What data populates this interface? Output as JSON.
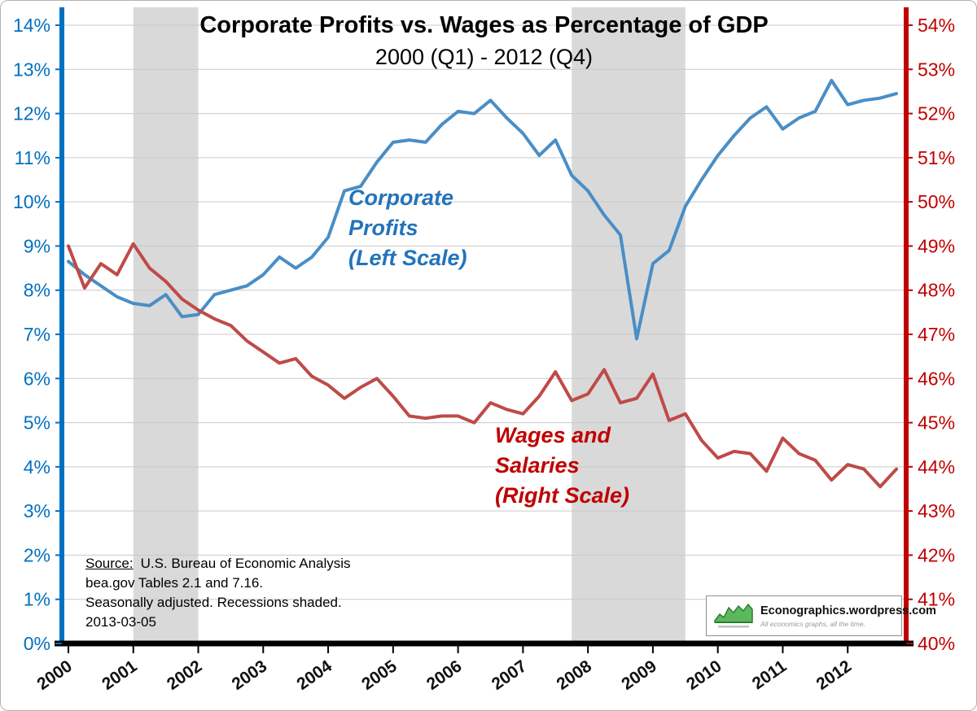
{
  "chart_data": {
    "type": "line",
    "title": "Corporate Profits vs. Wages as Percentage of GDP",
    "subtitle": "2000 (Q1) - 2012 (Q4)",
    "x_start": 2000.0,
    "x_step": 0.25,
    "x_axis": {
      "min": 1999.9,
      "max": 2012.9,
      "labels": [
        "2000",
        "2001",
        "2002",
        "2003",
        "2004",
        "2005",
        "2006",
        "2007",
        "2008",
        "2009",
        "2010",
        "2011",
        "2012"
      ]
    },
    "left_axis": {
      "label": "Corporate Profits (Left Scale)",
      "min": 0,
      "max": 14,
      "step": 1,
      "suffix": "%",
      "color": "#0070C0"
    },
    "right_axis": {
      "label": "Wages and Salaries (Right Scale)",
      "min": 40,
      "max": 54,
      "step": 1,
      "suffix": "%",
      "color": "#C00000"
    },
    "grid": true,
    "colors": {
      "recession": "#D9D9D9",
      "grid": "#C9C9C9",
      "profits_line": "#4A8EC6",
      "wages_line": "#BE4B48",
      "x_labels": "#111111"
    },
    "recessions": [
      {
        "start": 2001.0,
        "end": 2002.0
      },
      {
        "start": 2007.75,
        "end": 2009.5
      }
    ],
    "series": [
      {
        "name": "Corporate Profits",
        "axis": "left",
        "color": "#4A8EC6",
        "values": [
          8.65,
          8.35,
          8.1,
          7.85,
          7.7,
          7.65,
          7.9,
          7.4,
          7.45,
          7.9,
          8.0,
          8.1,
          8.35,
          8.75,
          8.5,
          8.75,
          9.2,
          10.25,
          10.35,
          10.9,
          11.35,
          11.4,
          11.35,
          11.75,
          12.05,
          12.0,
          12.3,
          11.9,
          11.55,
          11.05,
          11.4,
          10.6,
          10.25,
          9.7,
          9.25,
          6.9,
          8.6,
          8.9,
          9.9,
          10.5,
          11.05,
          11.5,
          11.9,
          12.15,
          11.65,
          11.9,
          12.05,
          12.75,
          12.2,
          12.3,
          12.35,
          12.45
        ]
      },
      {
        "name": "Wages and Salaries",
        "axis": "right",
        "color": "#BE4B48",
        "values": [
          49.0,
          48.05,
          48.6,
          48.35,
          49.05,
          48.5,
          48.2,
          47.8,
          47.55,
          47.35,
          47.2,
          46.85,
          46.6,
          46.35,
          46.45,
          46.05,
          45.85,
          45.55,
          45.8,
          46.0,
          45.6,
          45.15,
          45.1,
          45.15,
          45.15,
          45.0,
          45.45,
          45.3,
          45.2,
          45.6,
          46.15,
          45.5,
          45.65,
          46.2,
          45.45,
          45.55,
          46.1,
          45.05,
          45.2,
          44.6,
          44.2,
          44.35,
          44.3,
          43.9,
          44.65,
          44.3,
          44.15,
          43.7,
          44.05,
          43.95,
          43.55,
          43.95
        ]
      }
    ],
    "annotations": {
      "profits": {
        "color": "#2273BB",
        "lines": [
          "Corporate",
          "Profits",
          "(Left Scale)"
        ]
      },
      "wages": {
        "color": "#C00000",
        "lines": [
          "Wages and",
          "Salaries",
          "(Right Scale)"
        ]
      }
    }
  },
  "source": {
    "label": "Source:",
    "line1": "U.S. Bureau of Economic Analysis",
    "line2": "bea.gov Tables 2.1 and 7.16.",
    "line3": "Seasonally adjusted. Recessions shaded.",
    "line4": "2013-03-05"
  },
  "logo": {
    "brand": "Econographics.wordpress.com",
    "tagline": "All economics graphs, all the time."
  }
}
